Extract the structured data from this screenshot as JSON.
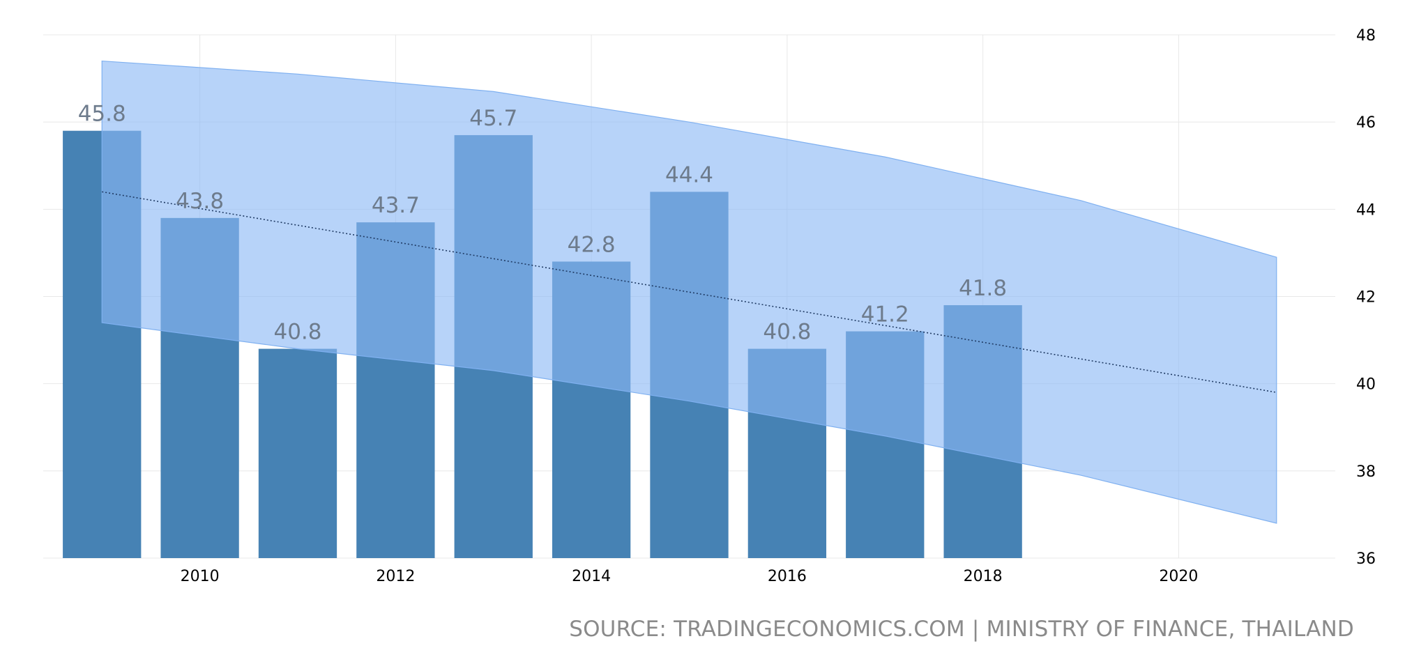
{
  "source": "SOURCE: TRADINGECONOMICS.COM | MINISTRY OF FINANCE, THAILAND",
  "colors": {
    "bar": "#4682b4",
    "band": "#8ab8f5",
    "trend": "#1f3a63",
    "grid": "#e8e8e8",
    "label": "#6d7b8c"
  },
  "chart_data": {
    "type": "bar",
    "title": "",
    "xlabel": "",
    "ylabel": "",
    "ylim": [
      36,
      48
    ],
    "xlim": [
      2008.4,
      2021.6
    ],
    "x_ticks": [
      2010,
      2012,
      2014,
      2016,
      2018,
      2020
    ],
    "y_ticks": [
      36,
      38,
      40,
      42,
      44,
      46,
      48
    ],
    "y_axis_side": "right",
    "grid": true,
    "categories": [
      2009,
      2010,
      2011,
      2012,
      2013,
      2014,
      2015,
      2016,
      2017,
      2018
    ],
    "values": [
      45.8,
      43.8,
      40.8,
      43.7,
      45.7,
      42.8,
      44.4,
      40.8,
      41.2,
      41.8
    ],
    "data_labels": [
      "45.8",
      "43.8",
      "40.8",
      "43.7",
      "45.7",
      "42.8",
      "44.4",
      "40.8",
      "41.2",
      "41.8"
    ],
    "trend_line": {
      "style": "dotted",
      "x": [
        2009,
        2021
      ],
      "y": [
        44.4,
        39.8
      ]
    },
    "forecast_band": {
      "x": [
        2009,
        2011,
        2013,
        2015,
        2017,
        2019,
        2021
      ],
      "upper": [
        47.4,
        47.1,
        46.7,
        46.0,
        45.2,
        44.2,
        42.9
      ],
      "lower": [
        41.4,
        40.8,
        40.3,
        39.6,
        38.8,
        37.9,
        36.8
      ]
    }
  }
}
